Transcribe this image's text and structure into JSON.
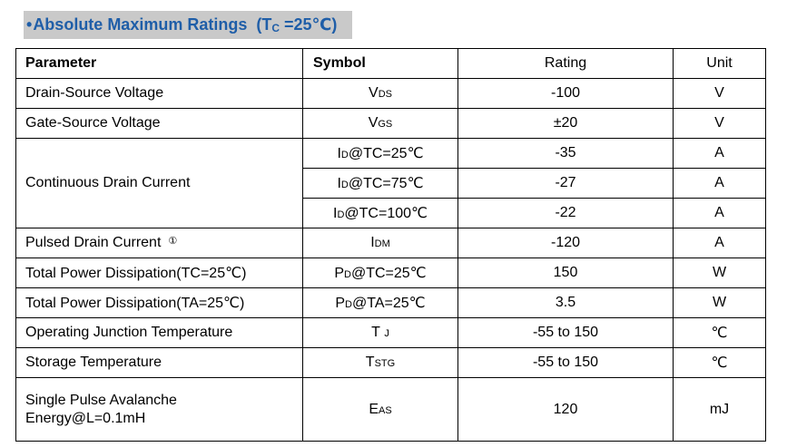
{
  "title": {
    "bullet": "•",
    "text": "Absolute Maximum Ratings",
    "cond_open": "(T",
    "cond_sub": "C",
    "cond_rest": " =25℃)"
  },
  "table": {
    "headers": {
      "parameter": "Parameter",
      "symbol": "Symbol",
      "rating": "Rating",
      "unit": "Unit"
    },
    "rows": [
      {
        "param": "Drain-Source Voltage",
        "sym_main": "V",
        "sym_sub": "DS",
        "sym_suffix": "",
        "rating": "-100",
        "unit": "V"
      },
      {
        "param": "Gate-Source Voltage",
        "sym_main": "V",
        "sym_sub": "GS",
        "sym_suffix": "",
        "rating": "±20",
        "unit": "V"
      },
      {
        "param": "Continuous Drain Current",
        "sym_main": "I",
        "sym_sub": "D",
        "sym_suffix": "@TC=25℃",
        "rating": "-35",
        "unit": "A"
      },
      {
        "param": "",
        "sym_main": "I",
        "sym_sub": "D",
        "sym_suffix": "@TC=75℃",
        "rating": "-27",
        "unit": "A"
      },
      {
        "param": "",
        "sym_main": "I",
        "sym_sub": "D",
        "sym_suffix": "@TC=100℃",
        "rating": "-22",
        "unit": "A"
      },
      {
        "param": "Pulsed Drain Current",
        "note": "①",
        "sym_main": "I",
        "sym_sub": "DM",
        "sym_suffix": "",
        "rating": "-120",
        "unit": "A"
      },
      {
        "param": "Total Power Dissipation(TC=25℃)",
        "sym_main": "P",
        "sym_sub": "D",
        "sym_suffix": "@TC=25℃",
        "rating": "150",
        "unit": "W"
      },
      {
        "param": "Total Power Dissipation(TA=25℃)",
        "sym_main": "P",
        "sym_sub": "D",
        "sym_suffix": "@TA=25℃",
        "rating": "3.5",
        "unit": "W"
      },
      {
        "param": "Operating Junction Temperature",
        "sym_main": "T",
        "sym_sub": "J",
        "sym_suffix": "",
        "rating": "-55 to 150",
        "unit": "℃"
      },
      {
        "param": "Storage Temperature",
        "sym_main": "T",
        "sym_sub": "STG",
        "sym_suffix": "",
        "rating": "-55 to 150",
        "unit": "℃"
      },
      {
        "param_line1": "Single Pulse Avalanche",
        "param_line2": "Energy@L=0.1mH",
        "sym_main": "E",
        "sym_sub": "AS",
        "sym_suffix": "",
        "rating": "120",
        "unit": "mJ"
      }
    ]
  }
}
